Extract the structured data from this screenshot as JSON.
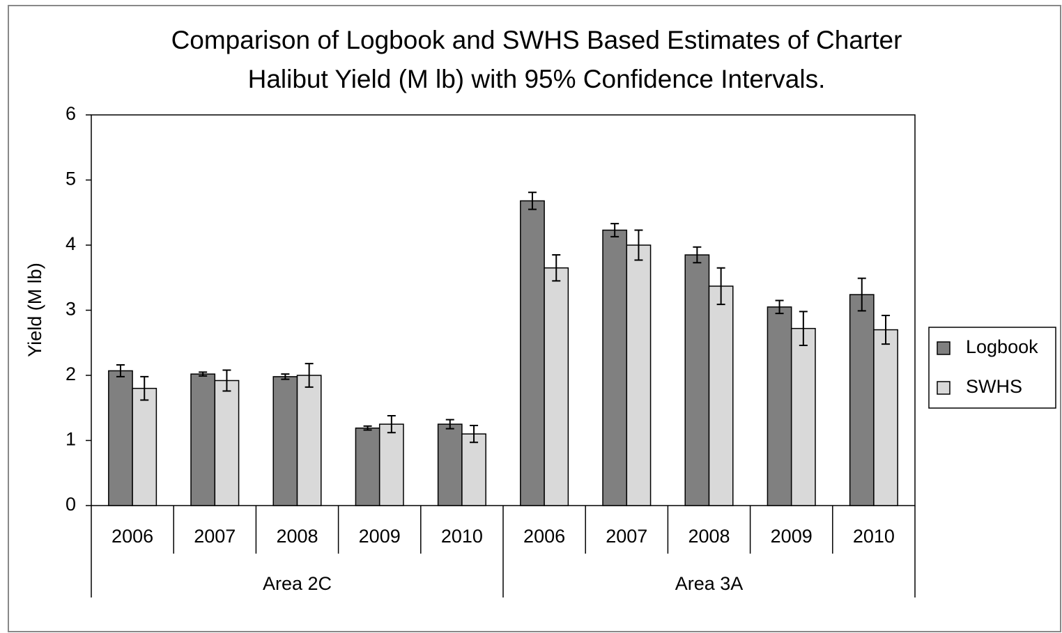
{
  "chart_data": {
    "type": "bar",
    "title": [
      "Comparison of Logbook and SWHS Based Estimates of Charter",
      "Halibut Yield (M  lb) with 95% Confidence Intervals."
    ],
    "y_label": "Yield (M lb)",
    "category_groups": [
      {
        "label": "Area 2C",
        "categories": [
          "2006",
          "2007",
          "2008",
          "2009",
          "2010"
        ]
      },
      {
        "label": "Area 3A",
        "categories": [
          "2006",
          "2007",
          "2008",
          "2009",
          "2010"
        ]
      }
    ],
    "series": [
      {
        "name": "Logbook",
        "color": "#808080",
        "values": [
          2.07,
          2.02,
          1.98,
          1.19,
          1.25,
          4.68,
          4.23,
          3.85,
          3.05,
          3.24
        ],
        "errors": [
          0.09,
          0.03,
          0.04,
          0.03,
          0.07,
          0.13,
          0.1,
          0.12,
          0.1,
          0.25
        ]
      },
      {
        "name": "SWHS",
        "color": "#d9d9d9",
        "values": [
          1.8,
          1.92,
          2.0,
          1.25,
          1.1,
          3.65,
          4.0,
          3.37,
          2.72,
          2.7
        ],
        "errors": [
          0.18,
          0.16,
          0.18,
          0.13,
          0.13,
          0.2,
          0.23,
          0.28,
          0.26,
          0.22
        ]
      }
    ],
    "ylim": [
      0,
      6
    ],
    "yticks": [
      0,
      1,
      2,
      3,
      4,
      5,
      6
    ],
    "grid": false,
    "legend": "right"
  }
}
